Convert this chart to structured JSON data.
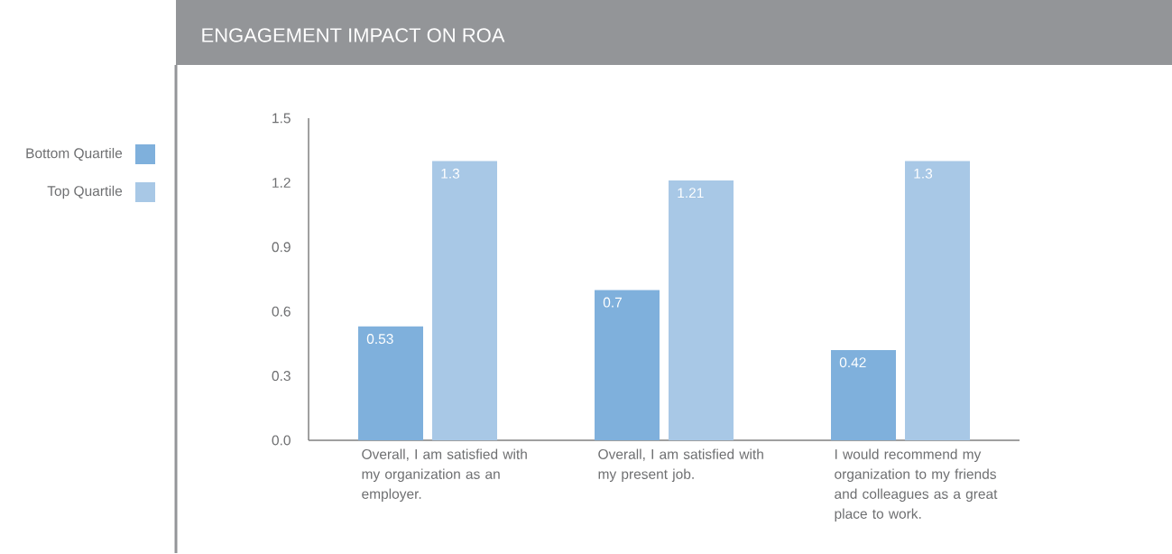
{
  "chart_data": {
    "type": "bar",
    "title": "ENGAGEMENT IMPACT ON ROA",
    "categories": [
      "Overall, I am satisfied with my organization as an employer.",
      "Overall, I am satisfied with my present job.",
      "I would recommend my organization to my friends and colleagues as a great place to work."
    ],
    "series": [
      {
        "name": "Bottom Quartile",
        "color": "#7fb0dc",
        "values": [
          0.53,
          0.7,
          0.42
        ]
      },
      {
        "name": "Top Quartile",
        "color": "#a8c8e6",
        "values": [
          1.3,
          1.21,
          1.3
        ]
      }
    ],
    "ylim": [
      0,
      1.5
    ],
    "yticks": [
      {
        "value": 0,
        "label": "0.0"
      },
      0.3,
      0.6,
      0.9,
      1.2,
      1.5
    ],
    "data_labels": true,
    "legend": "left"
  }
}
